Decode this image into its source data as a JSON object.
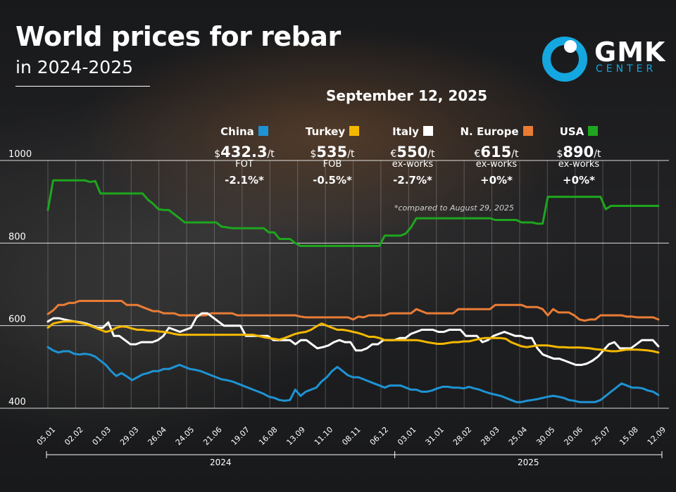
{
  "title": "World prices for rebar",
  "subtitle": "in 2024-2025",
  "brand": {
    "name": "GMK",
    "sub": "CENTER",
    "accent": "#14a7e0"
  },
  "date": "September 12, 2025",
  "footnote": "*compared to August 29, 2025",
  "annotations": [
    {
      "name": "China",
      "color": "#1e93d3",
      "currency": "$",
      "price": "432.3",
      "unit": "/t",
      "basis": "FOT",
      "change": "-2.1%*"
    },
    {
      "name": "Turkey",
      "color": "#f4b800",
      "currency": "$",
      "price": "535",
      "unit": "/t",
      "basis": "FOB",
      "change": "-0.5%*"
    },
    {
      "name": "Italy",
      "color": "#ffffff",
      "currency": "€",
      "price": "550",
      "unit": "/t",
      "basis": "ex-works",
      "change": "-2.7%*"
    },
    {
      "name": "N. Europe",
      "color": "#e97c35",
      "currency": "€",
      "price": "615",
      "unit": "/t",
      "basis": "ex-works",
      "change": "+0%*"
    },
    {
      "name": "USA",
      "color": "#1ea61e",
      "currency": "$",
      "price": "890",
      "unit": "/t",
      "basis": "ex-works",
      "change": "+0%*"
    }
  ],
  "chart_data": {
    "type": "line",
    "title": "World prices for rebar",
    "ylim": [
      400,
      1000
    ],
    "yticks": [
      400,
      600,
      800,
      1000
    ],
    "grid": true,
    "xlabels": [
      "05.01",
      "02.02",
      "01.03",
      "29.03",
      "26.04",
      "24.05",
      "21.06",
      "19.07",
      "16.08",
      "13.09",
      "11.10",
      "08.11",
      "06.12",
      "03.01",
      "31.01",
      "28.02",
      "28.03",
      "25.04",
      "30.05",
      "20.06",
      "25.07",
      "15.08",
      "12.09"
    ],
    "year_groups": [
      {
        "label": "2024",
        "from": 0,
        "to": 12
      },
      {
        "label": "2025",
        "from": 13,
        "to": 22
      }
    ],
    "series": [
      {
        "name": "USA",
        "color": "#1ea61e",
        "values": [
          880,
          952,
          952,
          952,
          952,
          952,
          952,
          952,
          948,
          950,
          920,
          920,
          920,
          920,
          920,
          920,
          920,
          920,
          920,
          905,
          895,
          882,
          880,
          880,
          870,
          860,
          850,
          850,
          850,
          850,
          850,
          850,
          850,
          840,
          838,
          836,
          836,
          836,
          836,
          836,
          836,
          836,
          826,
          826,
          810,
          810,
          810,
          800,
          793,
          793,
          793,
          793,
          793,
          793,
          793,
          793,
          793,
          793,
          793,
          793,
          793,
          793,
          793,
          793,
          818,
          818,
          818,
          818,
          823,
          838,
          860,
          860,
          860,
          860,
          860,
          860,
          860,
          860,
          860,
          860,
          860,
          860,
          860,
          860,
          860,
          856,
          856,
          856,
          856,
          856,
          850,
          850,
          850,
          847,
          847,
          912,
          912,
          912,
          912,
          912,
          912,
          912,
          912,
          912,
          912,
          912,
          882,
          890,
          890,
          890,
          890,
          890,
          890,
          890,
          890,
          890,
          890
        ]
      },
      {
        "name": "N. Europe",
        "color": "#e97c35",
        "values": [
          628,
          637,
          650,
          650,
          655,
          655,
          660,
          660,
          660,
          660,
          660,
          660,
          660,
          660,
          660,
          650,
          650,
          650,
          645,
          640,
          635,
          635,
          630,
          630,
          630,
          625,
          625,
          625,
          625,
          625,
          625,
          630,
          630,
          630,
          630,
          630,
          625,
          625,
          625,
          625,
          625,
          625,
          625,
          625,
          625,
          625,
          625,
          625,
          622,
          620,
          620,
          620,
          620,
          620,
          620,
          620,
          620,
          620,
          615,
          622,
          620,
          625,
          625,
          625,
          625,
          630,
          630,
          630,
          630,
          630,
          640,
          635,
          630,
          630,
          630,
          630,
          630,
          630,
          640,
          640,
          640,
          640,
          640,
          640,
          640,
          650,
          650,
          650,
          650,
          650,
          650,
          645,
          645,
          645,
          640,
          625,
          640,
          632,
          632,
          632,
          625,
          615,
          612,
          615,
          615,
          625,
          625,
          625,
          625,
          625,
          622,
          622,
          620,
          620,
          620,
          620,
          615
        ]
      },
      {
        "name": "Italy",
        "color": "#ffffff",
        "values": [
          610,
          618,
          618,
          615,
          612,
          610,
          608,
          605,
          600,
          595,
          595,
          608,
          575,
          575,
          565,
          555,
          555,
          560,
          560,
          560,
          565,
          575,
          595,
          590,
          585,
          590,
          595,
          620,
          630,
          630,
          620,
          610,
          600,
          600,
          600,
          600,
          575,
          575,
          575,
          575,
          575,
          565,
          565,
          565,
          565,
          555,
          565,
          565,
          555,
          545,
          548,
          552,
          560,
          565,
          560,
          560,
          540,
          540,
          545,
          555,
          555,
          565,
          565,
          565,
          570,
          570,
          580,
          585,
          590,
          590,
          590,
          585,
          585,
          590,
          590,
          590,
          575,
          575,
          575,
          560,
          565,
          575,
          580,
          585,
          580,
          575,
          575,
          570,
          570,
          545,
          530,
          525,
          520,
          520,
          515,
          510,
          505,
          505,
          508,
          515,
          525,
          540,
          555,
          560,
          545,
          545,
          545,
          555,
          565,
          565,
          565,
          550
        ]
      },
      {
        "name": "Turkey",
        "color": "#f4b800",
        "values": [
          595,
          605,
          608,
          610,
          610,
          610,
          607,
          604,
          600,
          595,
          590,
          585,
          588,
          595,
          598,
          597,
          593,
          590,
          590,
          588,
          588,
          586,
          585,
          583,
          580,
          578,
          578,
          578,
          578,
          578,
          578,
          578,
          578,
          578,
          578,
          578,
          578,
          578,
          578,
          578,
          575,
          572,
          570,
          568,
          566,
          570,
          575,
          580,
          583,
          585,
          590,
          598,
          605,
          600,
          595,
          590,
          590,
          588,
          585,
          582,
          578,
          573,
          573,
          570,
          565,
          565,
          565,
          565,
          565,
          565,
          565,
          563,
          560,
          558,
          556,
          556,
          558,
          560,
          560,
          562,
          562,
          565,
          568,
          570,
          570,
          570,
          570,
          568,
          560,
          555,
          550,
          548,
          550,
          552,
          552,
          552,
          550,
          548,
          548,
          547,
          547,
          547,
          546,
          545,
          543,
          542,
          540,
          538,
          538,
          540,
          542,
          542,
          542,
          541,
          540,
          538,
          535
        ]
      },
      {
        "name": "China",
        "color": "#1e93d3",
        "values": [
          548,
          540,
          535,
          538,
          538,
          532,
          530,
          532,
          530,
          525,
          515,
          505,
          490,
          478,
          485,
          477,
          468,
          475,
          482,
          485,
          490,
          490,
          495,
          495,
          500,
          505,
          500,
          495,
          493,
          490,
          485,
          480,
          475,
          470,
          468,
          465,
          460,
          455,
          450,
          445,
          440,
          435,
          428,
          425,
          420,
          418,
          420,
          445,
          430,
          440,
          445,
          450,
          465,
          475,
          490,
          500,
          490,
          480,
          475,
          475,
          470,
          465,
          460,
          455,
          450,
          455,
          455,
          455,
          450,
          445,
          445,
          440,
          440,
          443,
          448,
          452,
          452,
          450,
          450,
          448,
          452,
          448,
          445,
          440,
          436,
          433,
          430,
          425,
          420,
          415,
          415,
          418,
          420,
          422,
          425,
          428,
          430,
          428,
          425,
          420,
          418,
          415,
          415,
          415,
          415,
          420,
          430,
          440,
          450,
          460,
          455,
          450,
          450,
          448,
          443,
          440,
          432
        ]
      }
    ]
  }
}
